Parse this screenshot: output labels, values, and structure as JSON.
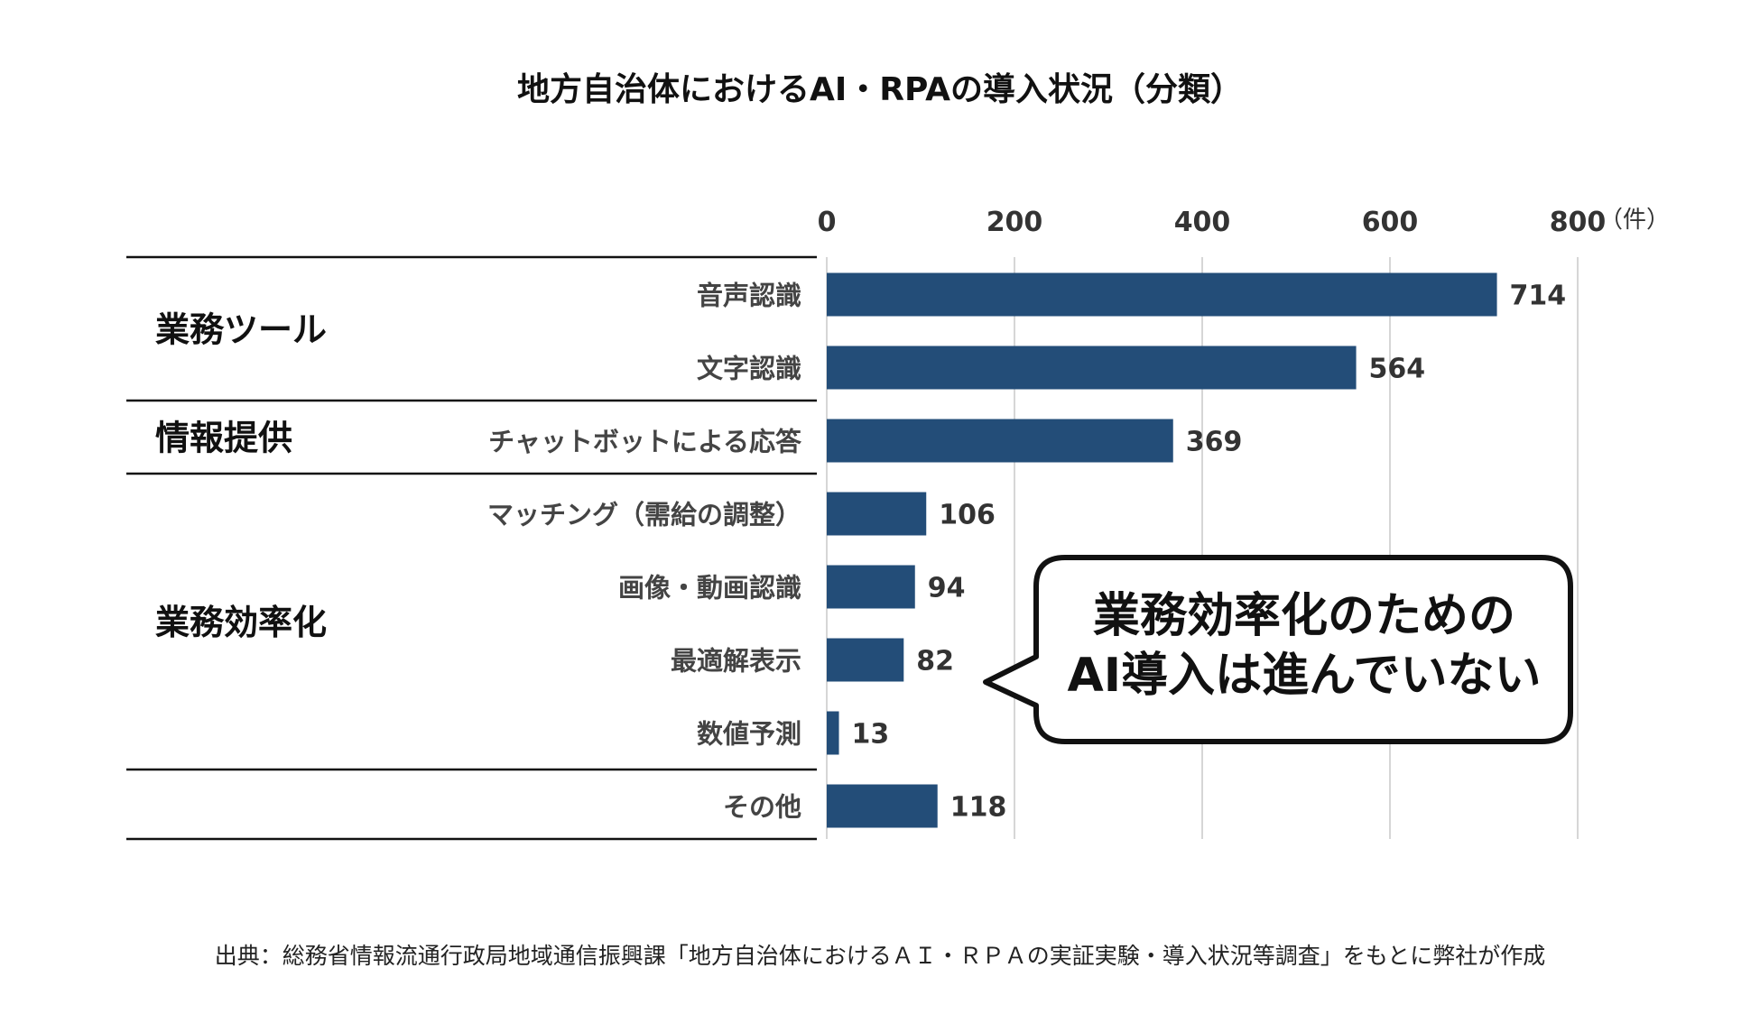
{
  "title": "地方自治体におけるAI・RPAの導入状況（分類）",
  "source": "出典：総務省情報流通行政局地域通信振興課「地方自治体におけるＡＩ・ＲＰＡの実証実験・導入状況等調査」をもとに弊社が作成",
  "callout": {
    "line1": "業務効率化のための",
    "line2": "AI導入は進んでいない"
  },
  "chart_data": {
    "type": "bar",
    "orientation": "horizontal",
    "unit": "（件）",
    "xlim": [
      0,
      800
    ],
    "ticks": [
      0,
      200,
      400,
      600,
      800
    ],
    "grid": true,
    "bar_color": "#234d78",
    "groups": [
      {
        "label": "業務ツール",
        "categories": [
          "音声認識",
          "文字認識"
        ]
      },
      {
        "label": "情報提供",
        "categories": [
          "チャットボットによる応答"
        ]
      },
      {
        "label": "業務効率化",
        "categories": [
          "マッチング（需給の調整）",
          "画像・動画認識",
          "最適解表示",
          "数値予測"
        ]
      },
      {
        "label": "",
        "categories": [
          "その他"
        ]
      }
    ],
    "categories": [
      "音声認識",
      "文字認識",
      "チャットボットによる応答",
      "マッチング（需給の調整）",
      "画像・動画認識",
      "最適解表示",
      "数値予測",
      "その他"
    ],
    "values": [
      714,
      564,
      369,
      106,
      94,
      82,
      13,
      118
    ]
  }
}
